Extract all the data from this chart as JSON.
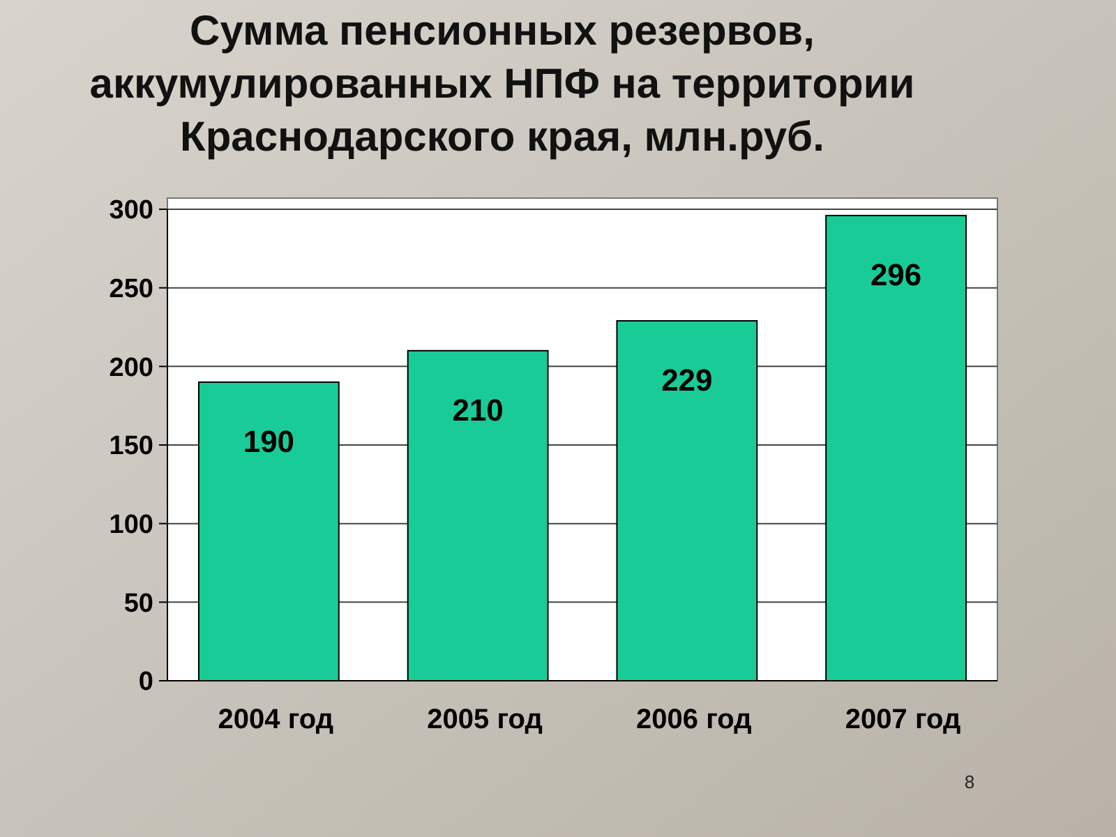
{
  "chart_data": {
    "type": "bar",
    "title": "Сумма пенсионных резервов, аккумулированных НПФ на территории Краснодарского края, млн.руб.",
    "categories": [
      "2004 год",
      "2005 год",
      "2006 год",
      "2007 год"
    ],
    "values": [
      190,
      210,
      229,
      296
    ],
    "color": "#19cc97",
    "ylim": [
      0,
      300
    ],
    "yticks": [
      0,
      50,
      100,
      150,
      200,
      250,
      300
    ],
    "grid": "y",
    "data_labels": true,
    "annotations": [
      "8"
    ]
  }
}
